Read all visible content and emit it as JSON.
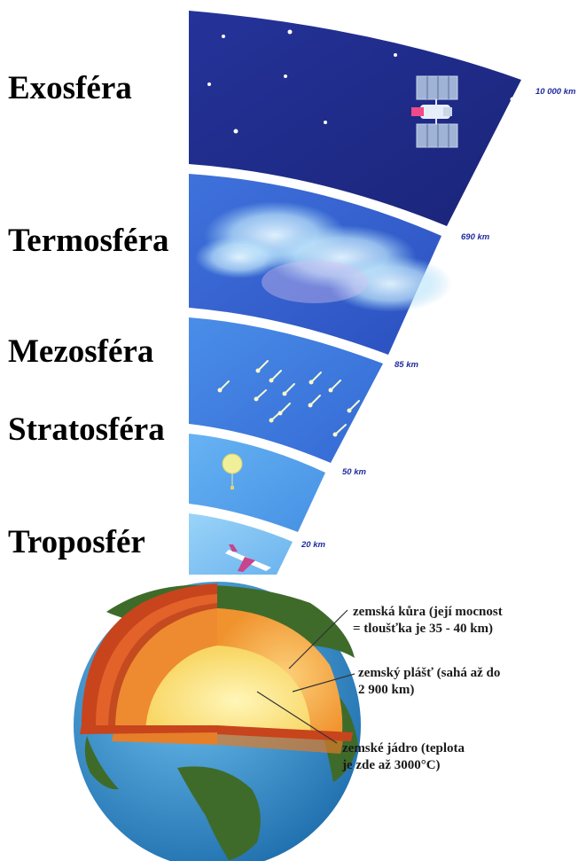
{
  "atmosphere": {
    "layers": [
      {
        "id": "exosfera",
        "label": "Exosféra"
      },
      {
        "id": "termosfera",
        "label": "Termosféra"
      },
      {
        "id": "mezosfera",
        "label": "Mezosféra"
      },
      {
        "id": "stratosfera",
        "label": "Stratosféra"
      },
      {
        "id": "troposfera",
        "label": "Troposfér"
      }
    ],
    "boundaries": [
      {
        "id": "b1",
        "label": "10 000 km"
      },
      {
        "id": "b2",
        "label": "690 km"
      },
      {
        "id": "b3",
        "label": "85 km"
      },
      {
        "id": "b4",
        "label": "50 km"
      },
      {
        "id": "b5",
        "label": "20 km"
      }
    ],
    "colors": {
      "exosphere": "#1e2a8c",
      "thermosphere": "#3b68d8",
      "mesosphere": "#3e7fe0",
      "stratosphere": "#55a6f0",
      "troposphere": "#7cc3f5",
      "separator": "#ffffff"
    }
  },
  "earth": {
    "annotations": {
      "crust": [
        "zemská kůra (její mocnost",
        "= tloušťka je 35 - 40 km)"
      ],
      "mantle": [
        "zemský plášť (sahá až do",
        "2 900 km)"
      ],
      "core": [
        "zemské jádro (teplota",
        "je zde až 3000°C)"
      ]
    },
    "colors": {
      "ocean": "#2f8fcf",
      "land": "#3e6a2a",
      "crust": "#c8441c",
      "mantle": "#f29a3a",
      "core": "#fbe58a"
    }
  }
}
